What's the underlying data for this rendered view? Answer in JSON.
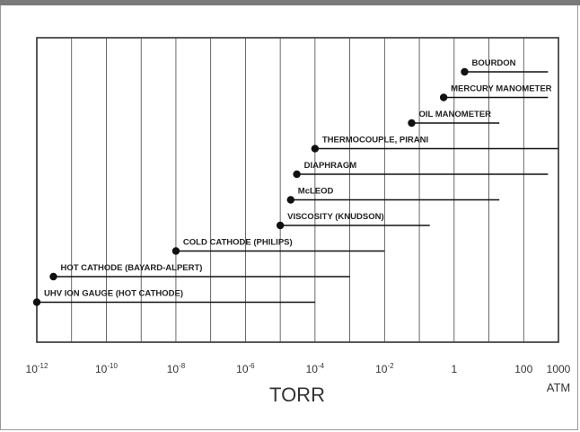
{
  "chart_data": {
    "type": "range-bar",
    "xlabel": "TORR",
    "x_scale": "log",
    "xlim": [
      1e-12,
      1000
    ],
    "x_ticks": [
      {
        "exp": -12,
        "base": "10",
        "sup": "-12"
      },
      {
        "exp": -10,
        "base": "10",
        "sup": "-10"
      },
      {
        "exp": -8,
        "base": "10",
        "sup": "-8"
      },
      {
        "exp": -6,
        "base": "10",
        "sup": "-6"
      },
      {
        "exp": -4,
        "base": "10",
        "sup": "-4"
      },
      {
        "exp": -2,
        "base": "10",
        "sup": "-2"
      },
      {
        "exp": 0,
        "text": "1"
      },
      {
        "exp": 2,
        "text": "100"
      },
      {
        "exp": 3,
        "text": "1000"
      }
    ],
    "grid_exponents": [
      -11,
      -10,
      -9,
      -8,
      -7,
      -6,
      -5,
      -4,
      -3,
      -2,
      -1,
      0,
      1,
      2
    ],
    "unit_label": "ATM",
    "gauges": [
      {
        "label": "BOURDON",
        "min": 2,
        "max": 500
      },
      {
        "label": "MERCURY MANOMETER",
        "min": 0.5,
        "max": 500
      },
      {
        "label": "OIL MANOMETER",
        "min": 0.06,
        "max": 20
      },
      {
        "label": "THERMOCOUPLE, PIRANI",
        "min": 0.0001,
        "max": 1000
      },
      {
        "label": "DIAPHRAGM",
        "min": 3e-05,
        "max": 500
      },
      {
        "label": "McLEOD",
        "min": 2e-05,
        "max": 20
      },
      {
        "label": "VISCOSITY (KNUDSON)",
        "min": 1e-05,
        "max": 0.2
      },
      {
        "label": "COLD CATHODE (PHILIPS)",
        "min": 1e-08,
        "max": 0.01
      },
      {
        "label": "HOT CATHODE (BAYARD-ALPERT)",
        "min": 3e-12,
        "max": 0.001
      },
      {
        "label": "UHV ION GAUGE (HOT CATHODE)",
        "min": 1e-12,
        "max": 0.0001
      }
    ]
  }
}
